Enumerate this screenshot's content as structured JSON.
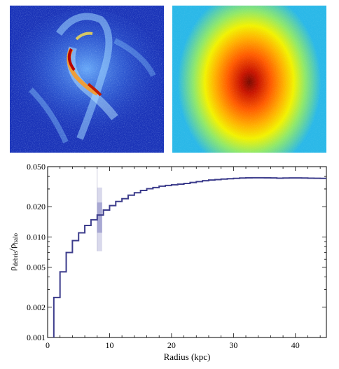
{
  "colors": {
    "left_map_background": "#1a33b8",
    "right_map_center": "#b81400",
    "right_map_edge": "#2ab8e8",
    "step_line": "#3d3d8c",
    "sun_band": "#8080c0"
  },
  "images": {
    "left": "simulated-debris-density-map",
    "right": "halo-density-map"
  },
  "chart_data": {
    "type": "line",
    "drawstyle": "steps",
    "title": "",
    "xlabel": "Radius (kpc)",
    "ylabel": "ρdebris/ρhalo",
    "ylabel_main": "ρ",
    "ylabel_num_sub": "debris",
    "ylabel_den_main": "/ρ",
    "ylabel_den_sub": "halo",
    "yscale": "log",
    "xlim": [
      0,
      45
    ],
    "ylim": [
      0.001,
      0.05
    ],
    "xticks": [
      0,
      10,
      20,
      30,
      40
    ],
    "yticks": [
      0.001,
      0.002,
      0.005,
      0.01,
      0.02,
      0.05
    ],
    "ytick_labels": [
      "0.001",
      "0.002",
      "0.005",
      "0.010",
      "0.020",
      "0.050"
    ],
    "series": [
      {
        "edges": [
          1,
          2,
          3,
          4,
          5,
          6,
          7,
          8,
          9,
          10,
          11,
          12,
          13,
          14,
          15,
          16,
          17,
          18,
          19,
          20,
          21,
          22,
          23,
          24,
          25,
          26,
          27,
          28,
          29,
          30,
          31,
          32,
          33,
          34,
          35,
          36,
          37,
          38,
          39,
          40,
          41,
          42,
          43,
          44,
          45
        ],
        "values": [
          0.0025,
          0.0045,
          0.007,
          0.0092,
          0.011,
          0.013,
          0.0148,
          0.0165,
          0.0185,
          0.0205,
          0.0225,
          0.024,
          0.026,
          0.0275,
          0.029,
          0.0302,
          0.031,
          0.032,
          0.0325,
          0.033,
          0.0335,
          0.034,
          0.0348,
          0.0355,
          0.0362,
          0.0368,
          0.0372,
          0.0376,
          0.0379,
          0.0382,
          0.0385,
          0.0387,
          0.0388,
          0.0388,
          0.0387,
          0.0386,
          0.0384,
          0.0385,
          0.0386,
          0.0386,
          0.0385,
          0.0384,
          0.0383,
          0.0382
        ]
      }
    ],
    "sun_marker": {
      "x": 8.4,
      "x_range": [
        8.0,
        8.8
      ],
      "outer_range": [
        0.0072,
        0.031
      ],
      "inner_range": [
        0.011,
        0.022
      ],
      "center": 0.0165
    }
  }
}
